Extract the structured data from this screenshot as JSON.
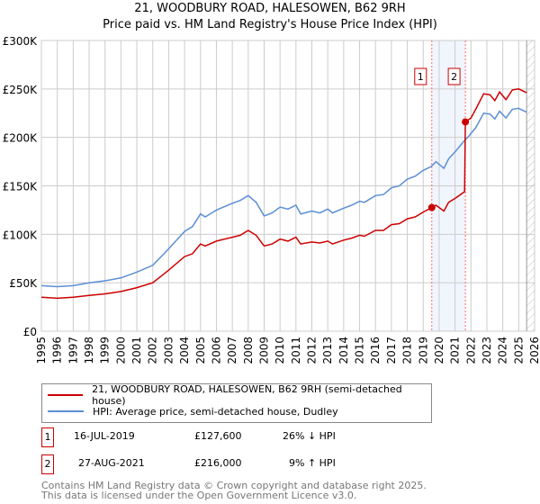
{
  "chart_data": {
    "type": "line",
    "title": "21, WOODBURY ROAD, HALESOWEN, B62 9RH",
    "subtitle": "Price paid vs. HM Land Registry's House Price Index (HPI)",
    "xlabel": "",
    "ylabel": "",
    "xlim": [
      1995,
      2026
    ],
    "ylim": [
      0,
      300000
    ],
    "x_ticks": [
      "1995",
      "1996",
      "1997",
      "1998",
      "1999",
      "2000",
      "2001",
      "2002",
      "2003",
      "2004",
      "2005",
      "2006",
      "2007",
      "2008",
      "2009",
      "2010",
      "2011",
      "2012",
      "2013",
      "2014",
      "2015",
      "2016",
      "2017",
      "2018",
      "2019",
      "2020",
      "2021",
      "2022",
      "2023",
      "2024",
      "2025",
      "2026"
    ],
    "y_ticks": [
      {
        "v": 0,
        "label": "£0"
      },
      {
        "v": 50000,
        "label": "£50K"
      },
      {
        "v": 100000,
        "label": "£100K"
      },
      {
        "v": 150000,
        "label": "£150K"
      },
      {
        "v": 200000,
        "label": "£200K"
      },
      {
        "v": 250000,
        "label": "£250K"
      },
      {
        "v": 300000,
        "label": "£300K"
      }
    ],
    "grid": true,
    "forecast_hatch_from": 2025.5,
    "series": [
      {
        "name": "21, WOODBURY ROAD, HALESOWEN, B62 9RH (semi-detached house)",
        "color": "#cc0000",
        "x": [
          1995,
          1996,
          1997,
          1998,
          1999,
          2000,
          2001,
          2002,
          2003,
          2004,
          2004.5,
          2005,
          2005.3,
          2006,
          2007,
          2007.5,
          2008,
          2008.5,
          2009,
          2009.5,
          2010,
          2010.5,
          2011,
          2011.3,
          2012,
          2012.5,
          2013,
          2013.3,
          2014,
          2014.5,
          2015,
          2015.3,
          2016,
          2016.5,
          2017,
          2017.5,
          2018,
          2018.5,
          2019,
          2019.54,
          2019.8,
          2020.3,
          2020.6,
          2021,
          2021.6,
          2021.65,
          2022,
          2022.3,
          2022.8,
          2023.2,
          2023.5,
          2023.8,
          2024.2,
          2024.6,
          2025,
          2025.5
        ],
        "y": [
          35000,
          34000,
          35000,
          37000,
          38500,
          41000,
          45000,
          50000,
          63000,
          77000,
          80000,
          90000,
          88000,
          93000,
          97000,
          99000,
          104000,
          99000,
          88000,
          90000,
          95000,
          93000,
          97000,
          90000,
          92000,
          91000,
          93000,
          90000,
          94000,
          96000,
          99000,
          98000,
          104000,
          104000,
          110000,
          111000,
          116000,
          118000,
          123000,
          127600,
          130000,
          124000,
          133000,
          137000,
          144000,
          216000,
          220000,
          229000,
          245000,
          244000,
          238000,
          247000,
          239000,
          249000,
          250000,
          246000
        ]
      },
      {
        "name": "HPI: Average price, semi-detached house, Dudley",
        "color": "#5b8fd4",
        "x": [
          1995,
          1996,
          1997,
          1998,
          1999,
          2000,
          2001,
          2002,
          2003,
          2004,
          2004.5,
          2005,
          2005.3,
          2006,
          2007,
          2007.5,
          2008,
          2008.5,
          2009,
          2009.5,
          2010,
          2010.5,
          2011,
          2011.3,
          2012,
          2012.5,
          2013,
          2013.3,
          2014,
          2014.5,
          2015,
          2015.3,
          2016,
          2016.5,
          2017,
          2017.5,
          2018,
          2018.5,
          2019,
          2019.5,
          2019.8,
          2020.3,
          2020.6,
          2021,
          2021.5,
          2021.9,
          2022.3,
          2022.8,
          2023.2,
          2023.5,
          2023.8,
          2024.2,
          2024.6,
          2025,
          2025.5
        ],
        "y": [
          47000,
          46000,
          47000,
          50000,
          52000,
          55000,
          61000,
          68000,
          85000,
          103000,
          108000,
          121000,
          118000,
          125000,
          132000,
          135000,
          140000,
          133000,
          119000,
          122000,
          128000,
          126000,
          130000,
          121000,
          124000,
          122000,
          126000,
          122000,
          127000,
          130000,
          134000,
          133000,
          140000,
          141000,
          148000,
          150000,
          157000,
          160000,
          166000,
          170000,
          175000,
          168000,
          178000,
          185000,
          195000,
          202000,
          210000,
          225000,
          224000,
          219000,
          227000,
          220000,
          229000,
          230000,
          226000
        ]
      }
    ],
    "sales": [
      {
        "label": "1",
        "x": 2019.54,
        "y": 127600,
        "date": "16-JUL-2019",
        "price": "£127,600",
        "hpi": "26% ↓ HPI"
      },
      {
        "label": "2",
        "x": 2021.65,
        "y": 216000,
        "date": "27-AUG-2021",
        "price": "£216,000",
        "hpi": "9% ↑ HPI"
      }
    ]
  },
  "footer": {
    "line1": "Contains HM Land Registry data © Crown copyright and database right 2025.",
    "line2": "This data is licensed under the Open Government Licence v3.0."
  }
}
